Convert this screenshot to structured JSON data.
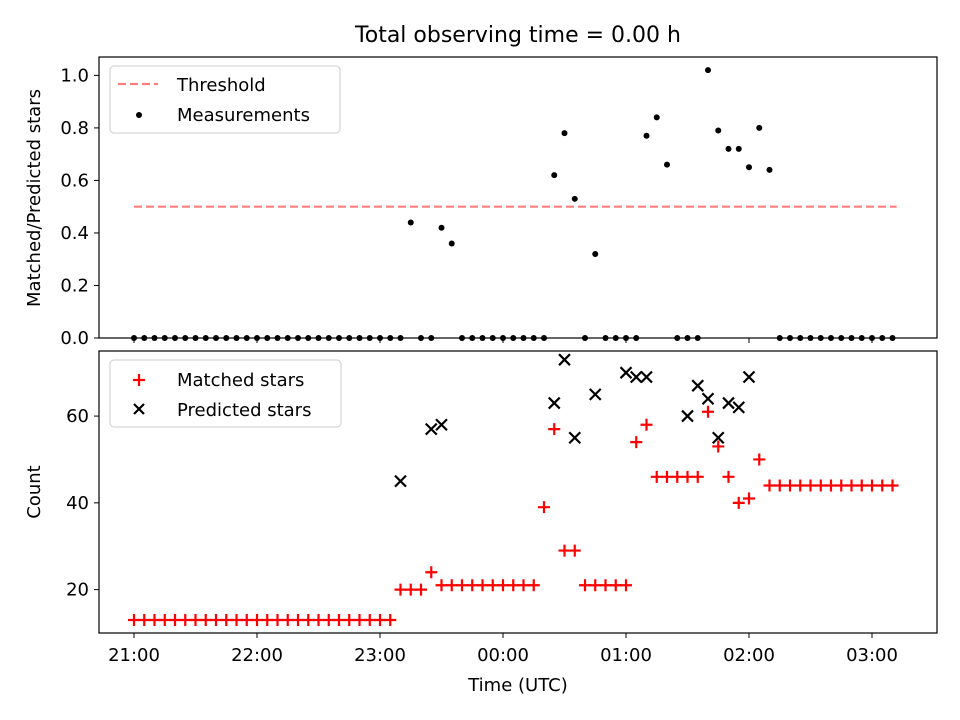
{
  "chart_data": [
    {
      "type": "scatter",
      "title": "Total observing time = 0.00 h",
      "xlabel": "",
      "ylabel": "Matched/Predicted stars",
      "ylim": [
        0,
        1.07
      ],
      "y_ticks": [
        "0.0",
        "0.2",
        "0.4",
        "0.6",
        "0.8",
        "1.0"
      ],
      "legend": {
        "placement": "top-left",
        "entries": [
          "Threshold",
          "Measurements"
        ]
      },
      "threshold": {
        "name": "Threshold",
        "y": 0.5,
        "x_start": "21:00",
        "x_end": "03:12",
        "color": "#ff7f7f"
      },
      "series": [
        {
          "name": "Measurements",
          "color": "#000000",
          "x": [
            "21:00",
            "21:05",
            "21:10",
            "21:15",
            "21:20",
            "21:25",
            "21:30",
            "21:35",
            "21:40",
            "21:45",
            "21:50",
            "21:55",
            "22:00",
            "22:05",
            "22:10",
            "22:15",
            "22:20",
            "22:25",
            "22:30",
            "22:35",
            "22:40",
            "22:45",
            "22:50",
            "22:55",
            "23:00",
            "23:05",
            "23:10",
            "23:15",
            "23:20",
            "23:25",
            "23:30",
            "23:35",
            "23:40",
            "23:45",
            "23:50",
            "23:55",
            "00:00",
            "00:05",
            "00:10",
            "00:15",
            "00:20",
            "00:25",
            "00:30",
            "00:35",
            "00:40",
            "00:45",
            "00:50",
            "00:55",
            "01:00",
            "01:05",
            "01:10",
            "01:15",
            "01:20",
            "01:25",
            "01:30",
            "01:35",
            "01:40",
            "01:45",
            "01:50",
            "01:55",
            "02:00",
            "02:05",
            "02:10",
            "02:15",
            "02:20",
            "02:25",
            "02:30",
            "02:35",
            "02:40",
            "02:45",
            "02:50",
            "02:55",
            "03:00",
            "03:05",
            "03:10"
          ],
          "y": [
            0,
            0,
            0,
            0,
            0,
            0,
            0,
            0,
            0,
            0,
            0,
            0,
            0,
            0,
            0,
            0,
            0,
            0,
            0,
            0,
            0,
            0,
            0,
            0,
            0,
            0,
            0,
            0.44,
            0,
            0,
            0.42,
            0.36,
            0,
            0,
            0,
            0,
            0,
            0,
            0,
            0,
            0,
            0.62,
            0.78,
            0.53,
            0,
            0.32,
            0,
            0,
            0,
            0,
            0.77,
            0.84,
            0.66,
            0,
            0,
            0,
            1.02,
            0.79,
            0.72,
            0.72,
            0.65,
            0.8,
            0.64,
            0,
            0,
            0,
            0,
            0,
            0,
            0,
            0,
            0,
            0,
            0,
            0
          ]
        }
      ]
    },
    {
      "type": "scatter",
      "title": "",
      "xlabel": "Time (UTC)",
      "ylabel": "Count",
      "ylim": [
        10,
        75
      ],
      "y_ticks": [
        "20",
        "40",
        "60"
      ],
      "x_ticks": [
        "21:00",
        "22:00",
        "23:00",
        "00:00",
        "01:00",
        "02:00",
        "03:00"
      ],
      "legend": {
        "placement": "top-left",
        "entries": [
          "Matched stars",
          "Predicted stars"
        ]
      },
      "series": [
        {
          "name": "Matched stars",
          "marker": "+",
          "color": "#ff0000",
          "x": [
            "21:00",
            "21:05",
            "21:10",
            "21:15",
            "21:20",
            "21:25",
            "21:30",
            "21:35",
            "21:40",
            "21:45",
            "21:50",
            "21:55",
            "22:00",
            "22:05",
            "22:10",
            "22:15",
            "22:20",
            "22:25",
            "22:30",
            "22:35",
            "22:40",
            "22:45",
            "22:50",
            "22:55",
            "23:00",
            "23:05",
            "23:10",
            "23:15",
            "23:20",
            "23:25",
            "23:30",
            "23:35",
            "23:40",
            "23:45",
            "23:50",
            "23:55",
            "00:00",
            "00:05",
            "00:10",
            "00:15",
            "00:20",
            "00:25",
            "00:30",
            "00:35",
            "00:40",
            "00:45",
            "00:50",
            "00:55",
            "01:00",
            "01:05",
            "01:10",
            "01:15",
            "01:20",
            "01:25",
            "01:30",
            "01:35",
            "01:40",
            "01:45",
            "01:50",
            "01:55",
            "02:00",
            "02:05",
            "02:10",
            "02:15",
            "02:20",
            "02:25",
            "02:30",
            "02:35",
            "02:40",
            "02:45",
            "02:50",
            "02:55",
            "03:00",
            "03:05",
            "03:10"
          ],
          "y": [
            13,
            13,
            13,
            13,
            13,
            13,
            13,
            13,
            13,
            13,
            13,
            13,
            13,
            13,
            13,
            13,
            13,
            13,
            13,
            13,
            13,
            13,
            13,
            13,
            13,
            13,
            20,
            20,
            20,
            24,
            21,
            21,
            21,
            21,
            21,
            21,
            21,
            21,
            21,
            21,
            39,
            57,
            29,
            29,
            21,
            21,
            21,
            21,
            21,
            54,
            58,
            46,
            46,
            46,
            46,
            46,
            61,
            53,
            46,
            40,
            41,
            50,
            44,
            44,
            44,
            44,
            44,
            44,
            44,
            44,
            44,
            44,
            44,
            44,
            44
          ]
        },
        {
          "name": "Predicted stars",
          "marker": "x",
          "color": "#000000",
          "x": [
            "23:10",
            "23:25",
            "23:30",
            "00:25",
            "00:30",
            "00:35",
            "00:45",
            "01:00",
            "01:05",
            "01:10",
            "01:30",
            "01:35",
            "01:40",
            "01:45",
            "01:50",
            "01:55",
            "02:00"
          ],
          "y": [
            45,
            57,
            58,
            63,
            73,
            55,
            65,
            70,
            69,
            69,
            60,
            67,
            64,
            55,
            63,
            62,
            69
          ]
        }
      ]
    }
  ]
}
